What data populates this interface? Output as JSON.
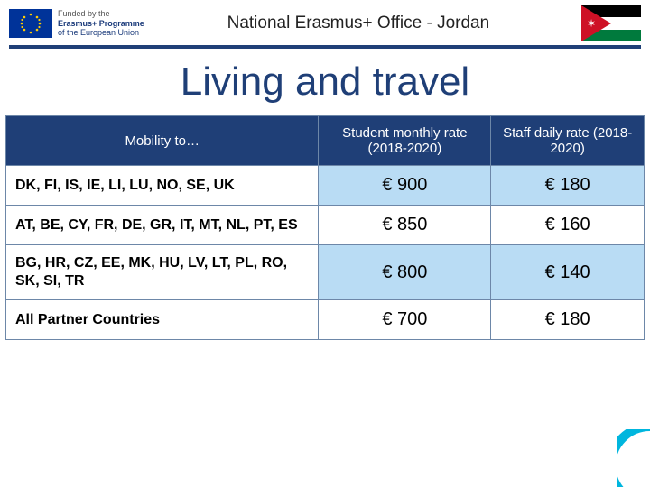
{
  "header": {
    "funding_line1": "Funded by the",
    "funding_line2": "Erasmus+ Programme",
    "funding_line3": "of the European Union",
    "title": "National Erasmus+ Office - Jordan"
  },
  "main_title": "Living and travel",
  "table": {
    "columns": [
      "Mobility to…",
      "Student monthly rate (2018-2020)",
      "Staff daily rate (2018-2020)"
    ],
    "rows": [
      {
        "dest": "DK, FI, IS, IE, LI, LU, NO, SE, UK",
        "student": "€ 900",
        "staff": "€ 180",
        "alt": true
      },
      {
        "dest": "AT, BE, CY, FR, DE, GR, IT, MT, NL, PT, ES",
        "student": "€ 850",
        "staff": "€ 160",
        "alt": false
      },
      {
        "dest": "BG, HR, CZ, EE, MK, HU, LV, LT, PL, RO, SK, SI, TR",
        "student": "€ 800",
        "staff": "€ 140",
        "alt": true
      },
      {
        "dest": "All Partner Countries",
        "student": "€ 700",
        "staff": "€ 180",
        "alt": false
      }
    ],
    "header_bg": "#1f3f77",
    "header_fg": "#ffffff",
    "alt_row_bg": "#b9dcf4",
    "border_color": "#6d87a8"
  },
  "colors": {
    "rule": "#1f3f77",
    "title": "#1f3f77",
    "eu_flag_bg": "#003399",
    "eu_stars": "#ffcc00",
    "jordan_black": "#000000",
    "jordan_white": "#ffffff",
    "jordan_green": "#007a3d",
    "jordan_red": "#ce1126",
    "badge_ring": "#00b6de"
  }
}
